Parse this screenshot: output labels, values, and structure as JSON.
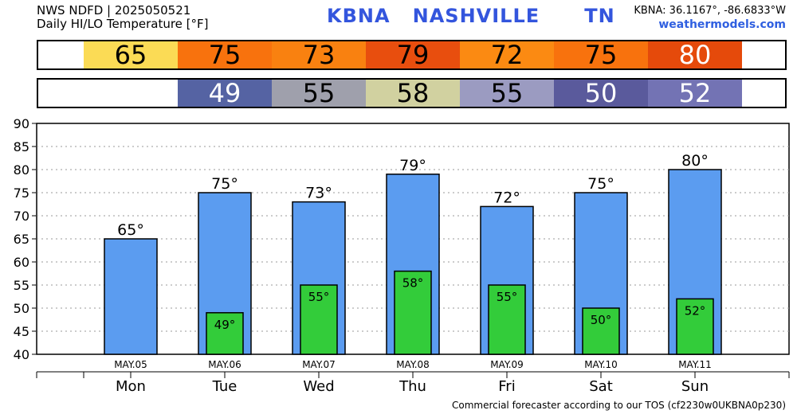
{
  "header": {
    "line1": "NWS NDFD | 2025050521",
    "line2": "Daily HI/LO Temperature [°F]",
    "station": "KBNA   NASHVILLE      TN",
    "coords": "KBNA: 36.1167°, -86.6833°W",
    "site": "weathermodels.com"
  },
  "strips": {
    "hi": [
      {
        "value": "65",
        "bg": "#fbdb55",
        "fg": "#000000"
      },
      {
        "value": "75",
        "bg": "#f8720d",
        "fg": "#000000"
      },
      {
        "value": "73",
        "bg": "#f98110",
        "fg": "#000000"
      },
      {
        "value": "79",
        "bg": "#e84e0e",
        "fg": "#000000"
      },
      {
        "value": "72",
        "bg": "#fb8a12",
        "fg": "#000000"
      },
      {
        "value": "75",
        "bg": "#f8720d",
        "fg": "#000000"
      },
      {
        "value": "80",
        "bg": "#e54a0b",
        "fg": "#ffffff"
      }
    ],
    "lo": [
      {
        "value": "",
        "bg": "#ffffff",
        "fg": "#000000"
      },
      {
        "value": "49",
        "bg": "#5563a3",
        "fg": "#ffffff"
      },
      {
        "value": "55",
        "bg": "#9fa0ac",
        "fg": "#000000"
      },
      {
        "value": "58",
        "bg": "#d1d1a0",
        "fg": "#000000"
      },
      {
        "value": "55",
        "bg": "#9b9bc1",
        "fg": "#000000"
      },
      {
        "value": "50",
        "bg": "#5a5a9c",
        "fg": "#ffffff"
      },
      {
        "value": "52",
        "bg": "#7373b4",
        "fg": "#ffffff"
      }
    ]
  },
  "chart_data": {
    "type": "bar",
    "ylim": [
      40,
      90
    ],
    "yticks": [
      40,
      45,
      50,
      55,
      60,
      65,
      70,
      75,
      80,
      85,
      90
    ],
    "grid": true,
    "dates": [
      "MAY.05",
      "MAY.06",
      "MAY.07",
      "MAY.08",
      "MAY.09",
      "MAY.10",
      "MAY.11"
    ],
    "days": [
      "Mon",
      "Tue",
      "Wed",
      "Thu",
      "Fri",
      "Sat",
      "Sun"
    ],
    "series": [
      {
        "values": [
          65,
          75,
          73,
          79,
          72,
          75,
          80
        ],
        "color": "#5b9cf0",
        "labels": [
          "65°",
          "75°",
          "73°",
          "79°",
          "72°",
          "75°",
          "80°"
        ]
      },
      {
        "values": [
          null,
          49,
          55,
          58,
          55,
          50,
          52
        ],
        "color": "#33cc3a",
        "labels": [
          "",
          "49°",
          "55°",
          "58°",
          "55°",
          "50°",
          "52°"
        ]
      }
    ]
  },
  "footer": "Commercial forecaster according to our TOS (cf2230w0UKBNA0p230)"
}
